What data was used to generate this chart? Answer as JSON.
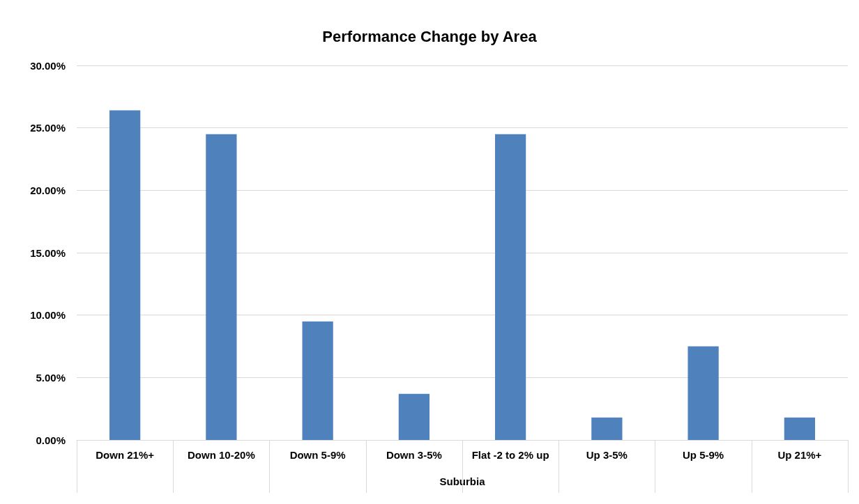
{
  "chart_data": {
    "type": "bar",
    "title": "Performance Change by Area",
    "xlabel": "Suburbia",
    "categories": [
      "Down 21%+",
      "Down 10-20%",
      "Down 5-9%",
      "Down 3-5%",
      "Flat -2 to 2% up",
      "Up 3-5%",
      "Up 5-9%",
      "Up 21%+"
    ],
    "values": [
      26.4,
      24.5,
      9.5,
      3.7,
      24.5,
      1.8,
      7.5,
      1.8
    ],
    "color": "#4f81bd",
    "ylim": [
      0,
      30
    ],
    "yticks": [
      {
        "value": 0,
        "label": "0.00%"
      },
      {
        "value": 5,
        "label": "5.00%"
      },
      {
        "value": 10,
        "label": "10.00%"
      },
      {
        "value": 15,
        "label": "15.00%"
      },
      {
        "value": 20,
        "label": "20.00%"
      },
      {
        "value": 25,
        "label": "25.00%"
      },
      {
        "value": 30,
        "label": "30.00%"
      }
    ],
    "grid": "y"
  }
}
